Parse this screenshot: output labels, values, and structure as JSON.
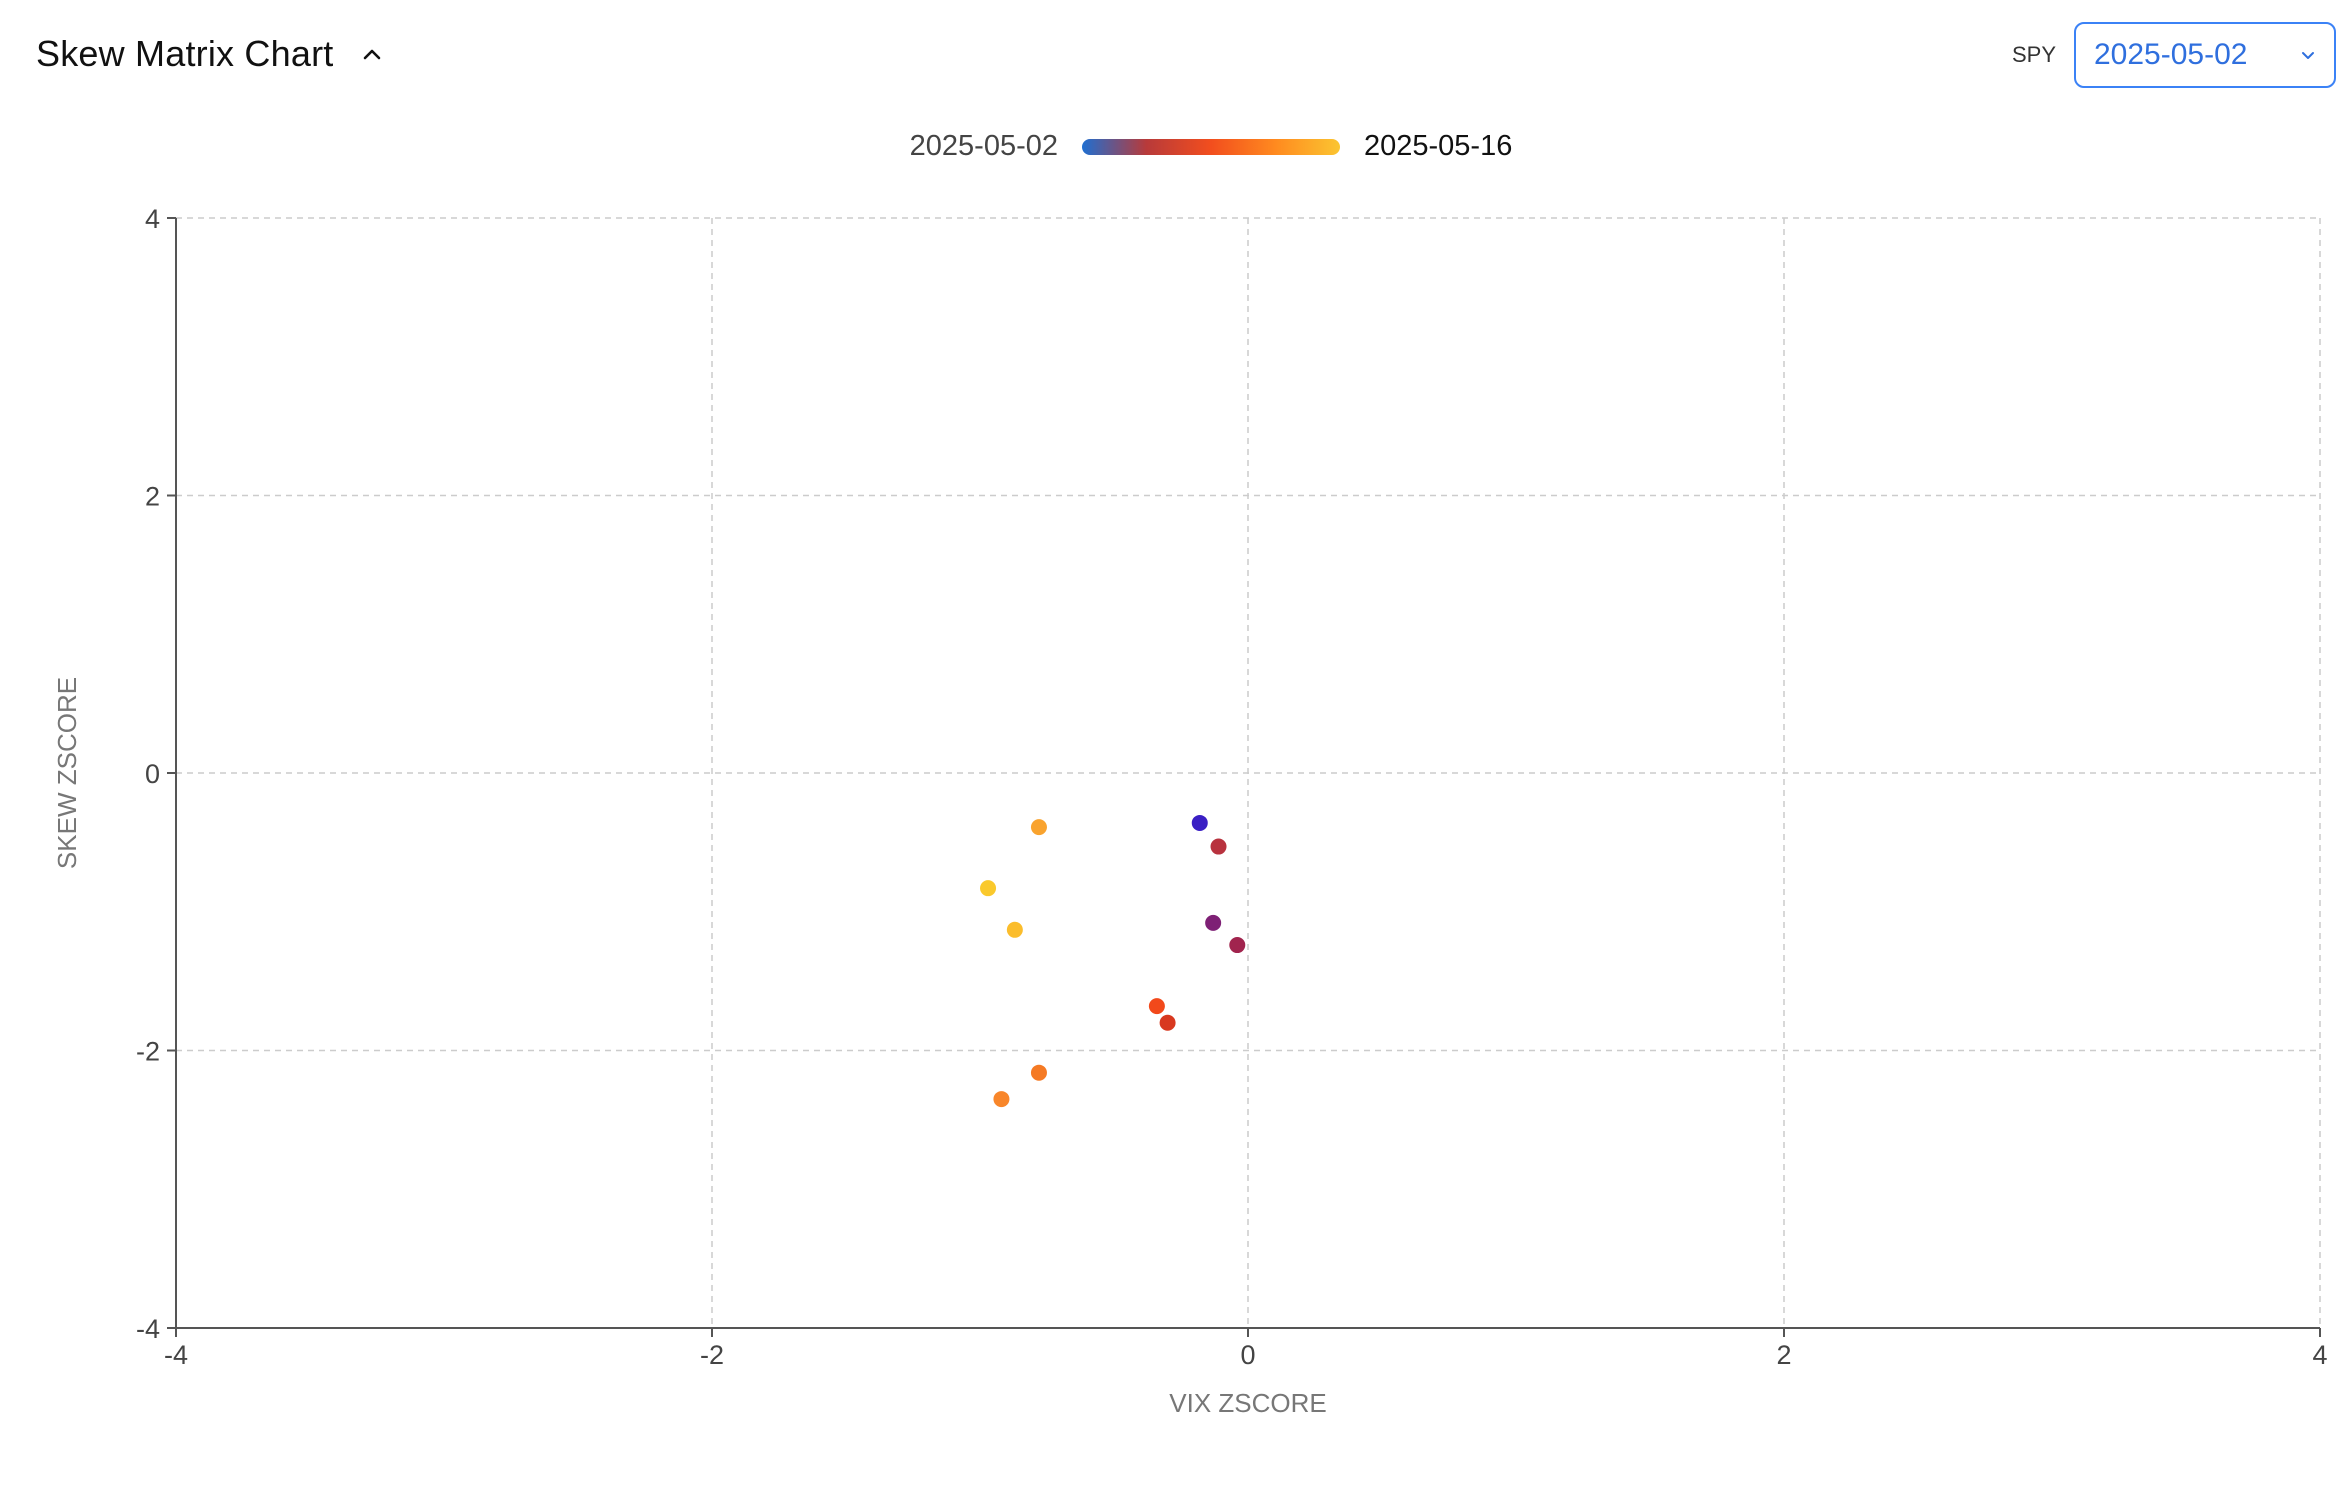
{
  "header": {
    "title": "Skew Matrix Chart",
    "ticker": "SPY",
    "selected_date": "2025-05-02"
  },
  "colors": {
    "gradient": [
      "#1f6fd1",
      "#b83a3a",
      "#f24e1e",
      "#ff8a1f",
      "#fbc531"
    ],
    "axis": "#555555",
    "grid": "#cccccc",
    "select_border": "#3b82f6"
  },
  "chart_data": {
    "type": "scatter",
    "legend": {
      "start_label": "2025-05-02",
      "end_label": "2025-05-16",
      "placement": "top-center"
    },
    "xlabel": "VIX ZSCORE",
    "ylabel": "SKEW ZSCORE",
    "xlim": [
      -4,
      4
    ],
    "ylim": [
      -4,
      4
    ],
    "xticks": [
      "-4",
      "-2",
      "0",
      "2",
      "4"
    ],
    "yticks": [
      "4",
      "2",
      "0",
      "-2",
      "-4"
    ],
    "grid": true,
    "points": [
      {
        "x": -0.18,
        "y": -0.36,
        "color": "#3a1fc4"
      },
      {
        "x": -0.11,
        "y": -0.53,
        "color": "#b8323e"
      },
      {
        "x": -0.13,
        "y": -1.08,
        "color": "#7e2075"
      },
      {
        "x": -0.04,
        "y": -1.24,
        "color": "#a1244e"
      },
      {
        "x": -0.34,
        "y": -1.68,
        "color": "#f2491b"
      },
      {
        "x": -0.3,
        "y": -1.8,
        "color": "#d8381f"
      },
      {
        "x": -0.78,
        "y": -2.16,
        "color": "#f57a24"
      },
      {
        "x": -0.92,
        "y": -2.35,
        "color": "#f8862a"
      },
      {
        "x": -0.78,
        "y": -0.39,
        "color": "#f9a32e"
      },
      {
        "x": -0.97,
        "y": -0.83,
        "color": "#fac92c"
      },
      {
        "x": -0.87,
        "y": -1.13,
        "color": "#fbbd2c"
      }
    ]
  }
}
